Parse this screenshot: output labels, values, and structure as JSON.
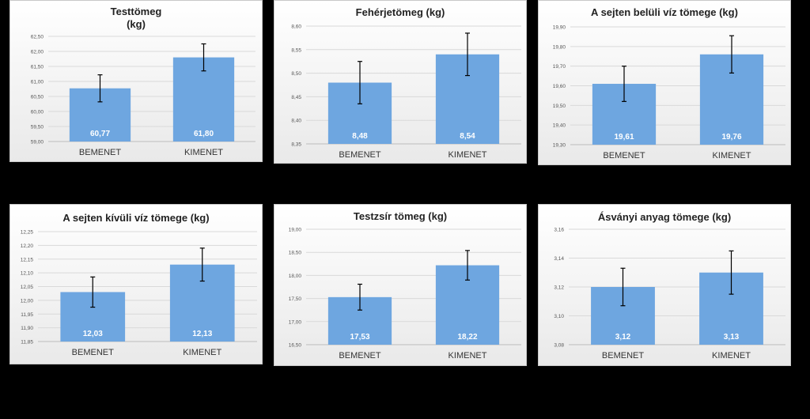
{
  "chart_data": [
    {
      "type": "bar",
      "title": "Testtömeg",
      "subtitle": "(kg)",
      "categories": [
        "BEMENET",
        "KIMENET"
      ],
      "values": [
        60.77,
        61.8
      ],
      "value_labels": [
        "60,77",
        "61,80"
      ],
      "errors": [
        0.45,
        0.45
      ],
      "ylim": [
        59.0,
        62.5
      ],
      "yticks": [
        "59,00",
        "59,50",
        "60,00",
        "60,50",
        "61,00",
        "61,50",
        "62,00",
        "62,50"
      ],
      "color": "#6ea6e0"
    },
    {
      "type": "bar",
      "title": "Fehérjetömeg (kg)",
      "categories": [
        "BEMENET",
        "KIMENET"
      ],
      "values": [
        8.48,
        8.54
      ],
      "value_labels": [
        "8,48",
        "8,54"
      ],
      "errors": [
        0.045,
        0.045
      ],
      "ylim": [
        8.35,
        8.6
      ],
      "yticks": [
        "8,35",
        "8,40",
        "8,45",
        "8,50",
        "8,55",
        "8,60"
      ],
      "color": "#6ea6e0"
    },
    {
      "type": "bar",
      "title": "A sejten belüli víz tömege (kg)",
      "categories": [
        "BEMENET",
        "KIMENET"
      ],
      "values": [
        19.61,
        19.76
      ],
      "value_labels": [
        "19,61",
        "19,76"
      ],
      "errors": [
        0.09,
        0.095
      ],
      "ylim": [
        19.3,
        19.9
      ],
      "yticks": [
        "19,30",
        "19,40",
        "19,50",
        "19,60",
        "19,70",
        "19,80",
        "19,90"
      ],
      "color": "#6ea6e0"
    },
    {
      "type": "bar",
      "title": "A sejten kívüli víz tömege (kg)",
      "categories": [
        "BEMENET",
        "KIMENET"
      ],
      "values": [
        12.03,
        12.13
      ],
      "value_labels": [
        "12,03",
        "12,13"
      ],
      "errors": [
        0.055,
        0.06
      ],
      "ylim": [
        11.85,
        12.25
      ],
      "yticks": [
        "11,85",
        "11,90",
        "11,95",
        "12,00",
        "12,05",
        "12,10",
        "12,15",
        "12,20",
        "12,25"
      ],
      "color": "#6ea6e0"
    },
    {
      "type": "bar",
      "title": "Testzsír tömeg (kg)",
      "categories": [
        "BEMENET",
        "KIMENET"
      ],
      "values": [
        17.53,
        18.22
      ],
      "value_labels": [
        "17,53",
        "18,22"
      ],
      "errors": [
        0.28,
        0.32
      ],
      "ylim": [
        16.5,
        19.0
      ],
      "yticks": [
        "16,50",
        "17,00",
        "17,50",
        "18,00",
        "18,50",
        "19,00"
      ],
      "color": "#6ea6e0"
    },
    {
      "type": "bar",
      "title": "Ásványi anyag tömege (kg)",
      "categories": [
        "BEMENET",
        "KIMENET"
      ],
      "values": [
        3.12,
        3.13
      ],
      "value_labels": [
        "3,12",
        "3,13"
      ],
      "errors": [
        0.013,
        0.015
      ],
      "ylim": [
        3.08,
        3.16
      ],
      "yticks": [
        "3,08",
        "3,10",
        "3,12",
        "3,14",
        "3,16"
      ],
      "color": "#6ea6e0"
    }
  ]
}
